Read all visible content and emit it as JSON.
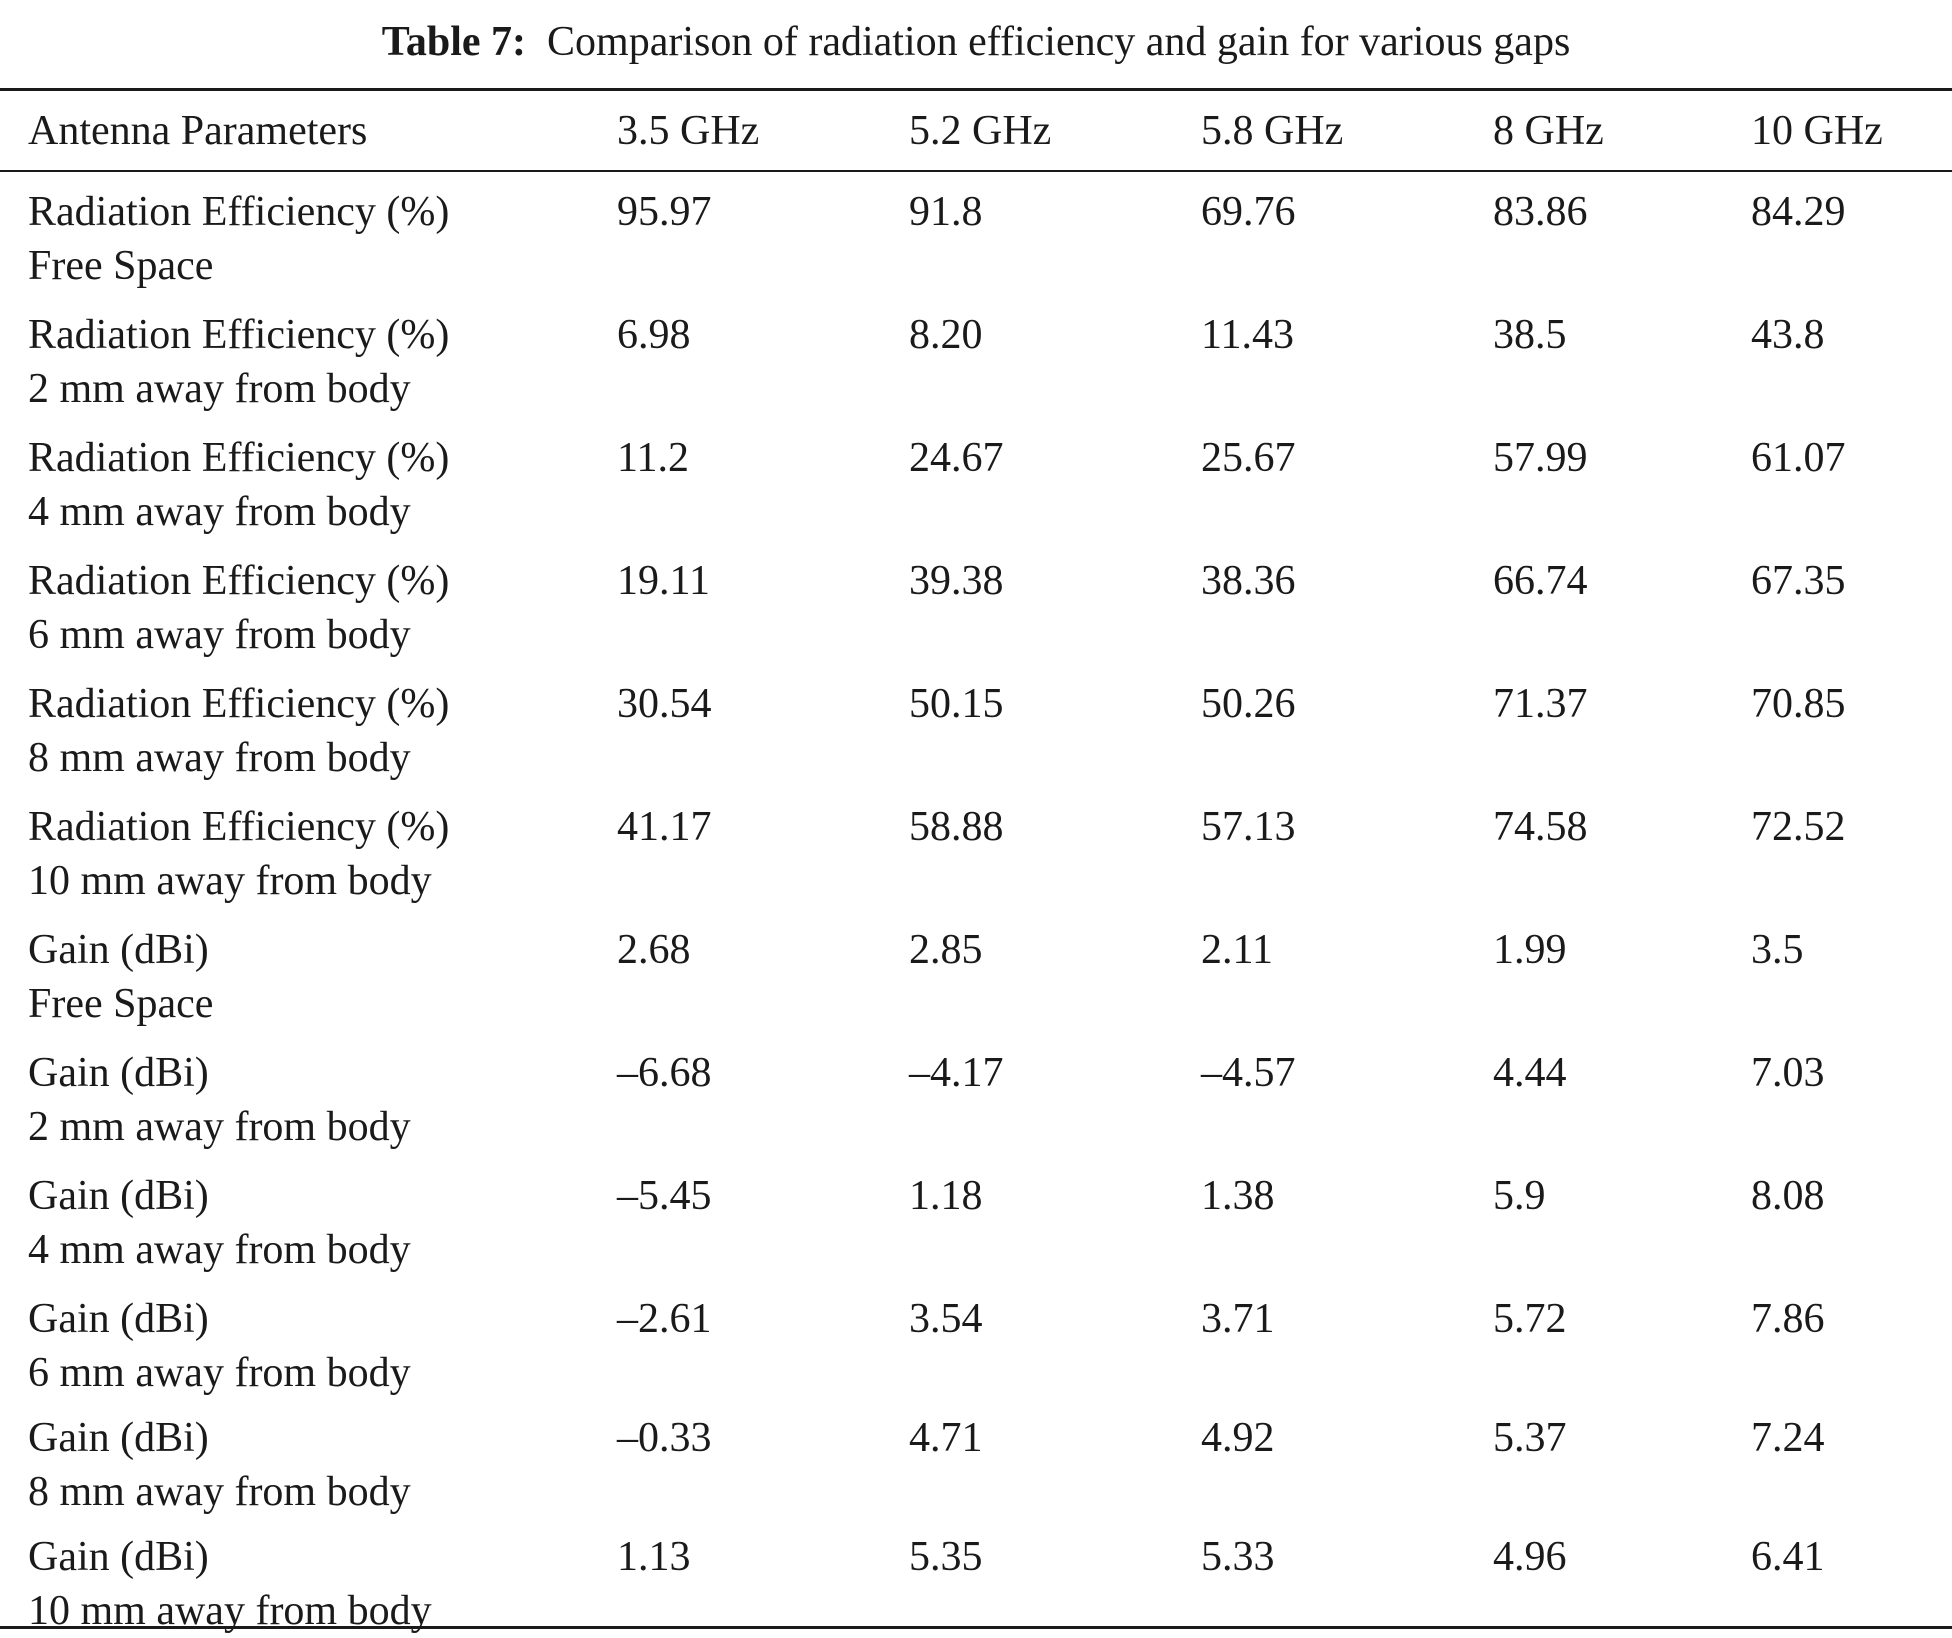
{
  "caption": {
    "label": "Table 7:",
    "text": "Comparison of radiation efficiency and gain for various gaps"
  },
  "table": {
    "headers": [
      "Antenna Parameters",
      "3.5 GHz",
      "5.2 GHz",
      "5.8 GHz",
      "8 GHz",
      "10 GHz"
    ],
    "rows": [
      {
        "param": "Radiation Efficiency (%)",
        "condition": "Free Space",
        "values": [
          "95.97",
          "91.8",
          "69.76",
          "83.86",
          "84.29"
        ]
      },
      {
        "param": "Radiation Efficiency (%)",
        "condition": "2 mm away from body",
        "values": [
          "6.98",
          "8.20",
          "11.43",
          "38.5",
          "43.8"
        ]
      },
      {
        "param": "Radiation Efficiency (%)",
        "condition": "4 mm away from body",
        "values": [
          "11.2",
          "24.67",
          "25.67",
          "57.99",
          "61.07"
        ]
      },
      {
        "param": "Radiation Efficiency (%)",
        "condition": "6 mm away from body",
        "values": [
          "19.11",
          "39.38",
          "38.36",
          "66.74",
          "67.35"
        ]
      },
      {
        "param": "Radiation Efficiency (%)",
        "condition": "8 mm away from body",
        "values": [
          "30.54",
          "50.15",
          "50.26",
          "71.37",
          "70.85"
        ]
      },
      {
        "param": "Radiation Efficiency (%)",
        "condition": "10 mm away from body",
        "values": [
          "41.17",
          "58.88",
          "57.13",
          "74.58",
          "72.52"
        ]
      },
      {
        "param": "Gain (dBi)",
        "condition": "Free Space",
        "values": [
          "2.68",
          "2.85",
          "2.11",
          "1.99",
          "3.5"
        ]
      },
      {
        "param": "Gain (dBi)",
        "condition": "2 mm away from body",
        "values": [
          "–6.68",
          "–4.17",
          "–4.57",
          "4.44",
          "7.03"
        ]
      },
      {
        "param": "Gain (dBi)",
        "condition": "4 mm away from body",
        "values": [
          "–5.45",
          "1.18",
          "1.38",
          "5.9",
          "8.08"
        ]
      },
      {
        "param": "Gain (dBi)",
        "condition": "6 mm away from body",
        "values": [
          "–2.61",
          "3.54",
          "3.71",
          "5.72",
          "7.86"
        ]
      },
      {
        "param": "Gain (dBi)",
        "condition": "8 mm away from body",
        "values": [
          "–0.33",
          "4.71",
          "4.92",
          "5.37",
          "7.24"
        ]
      },
      {
        "param": "Gain (dBi)",
        "condition": "10 mm away from body",
        "values": [
          "1.13",
          "5.35",
          "5.33",
          "4.96",
          "6.41"
        ]
      }
    ]
  }
}
